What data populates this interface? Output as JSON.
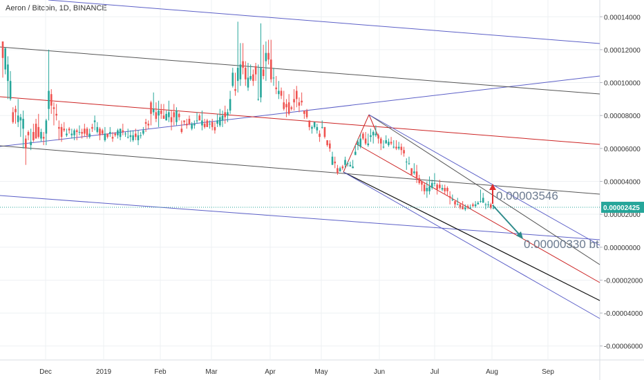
{
  "header": {
    "title": "Aeron / Bitcoin, 1D, BINANCE"
  },
  "colors": {
    "background": "#ffffff",
    "grid": "#eef0f3",
    "axis_text": "#333333",
    "up": "#26a69a",
    "down": "#ef5350",
    "blue_line": "#5b5fc7",
    "gray_line": "#555555",
    "red_line": "#cc2222",
    "black_line": "#111111",
    "price_label_bg": "#26a69a",
    "arrow_teal": "#2e8b8b",
    "arrow_red": "#e03030",
    "annotation_text": "#6b7a8f"
  },
  "chart_data": {
    "type": "candlestick",
    "title": "Aeron / Bitcoin, 1D, BINANCE",
    "y_ticks": [
      "0.00014000",
      "0.00012000",
      "0.00010000",
      "0.00008000",
      "0.00006000",
      "0.00004000",
      "0.00002000",
      "0.00000000",
      "-0.00002000",
      "-0.00004000",
      "-0.00006000"
    ],
    "y_tick_values": [
      0.00014,
      0.00012,
      0.0001,
      8e-05,
      6e-05,
      4e-05,
      2e-05,
      0.0,
      -2e-05,
      -4e-05,
      -6e-05
    ],
    "x_ticks": [
      "Dec",
      "2019",
      "Feb",
      "Mar",
      "Apr",
      "May",
      "Jun",
      "Jul",
      "Aug",
      "Sep"
    ],
    "ylim": [
      -6.85e-05,
      0.0001485
    ],
    "current_price": "0.00002425",
    "annotations": [
      "0.00003546",
      "0.00000330 bt"
    ],
    "candles": [
      [
        0.000125,
        0.000115,
        0.000122,
        0.000103
      ],
      [
        0.000108,
        0.000121,
        0.000113,
        0.000105
      ],
      [
        0.000101,
        0.000111,
        0.000116,
        9e-05
      ],
      [
        9e-05,
        0.000101,
        0.000107,
        8.9e-05
      ],
      [
        8.2e-05,
        7.6e-05,
        8.5e-05,
        7.5e-05
      ],
      [
        8.4e-05,
        8.2e-05,
        8.6e-05,
        7.5e-05
      ],
      [
        7.6e-05,
        8e-05,
        9e-05,
        7.3e-05
      ],
      [
        7.7e-05,
        7.9e-05,
        8.1e-05,
        6.7e-05
      ],
      [
        7.2e-05,
        7.8e-05,
        8.3e-05,
        6e-05
      ],
      [
        6.6e-05,
        6e-05,
        6.8e-05,
        5e-05
      ],
      [
        7e-05,
        6.8e-05,
        7.1e-05,
        6.5e-05
      ],
      [
        6.2e-05,
        6.4e-05,
        7.2e-05,
        5.9e-05
      ],
      [
        7e-05,
        6.5e-05,
        7.5e-05,
        6.4e-05
      ],
      [
        7.5e-05,
        6.6e-05,
        7.8e-05,
        6.6e-05
      ],
      [
        7.3e-05,
        6.7e-05,
        8.1e-05,
        6.6e-05
      ],
      [
        6.6e-05,
        7e-05,
        7.2e-05,
        6.4e-05
      ],
      [
        6.7e-05,
        6.6e-05,
        7e-05,
        6.2e-05
      ],
      [
        6.9e-05,
        7.7e-05,
        7.8e-05,
        6.2e-05
      ],
      [
        8.4e-05,
        9.5e-05,
        0.00012,
        7.7e-05
      ],
      [
        9.3e-05,
        8.6e-05,
        9.6e-05,
        8.1e-05
      ],
      [
        8.5e-05,
        8.4e-05,
        8.8e-05,
        7.4e-05
      ],
      [
        8.1e-05,
        8e-05,
        8.7e-05,
        7.7e-05
      ],
      [
        7.3e-05,
        7.2e-05,
        7.7e-05,
        6.5e-05
      ],
      [
        7.3e-05,
        6.7e-05,
        7.5e-05,
        6.4e-05
      ],
      [
        7.2e-05,
        7.1e-05,
        7.6e-05,
        7e-05
      ],
      [
        6.8e-05,
        6.9e-05,
        7.2e-05,
        6.7e-05
      ],
      [
        7.2e-05,
        7.1e-05,
        7.3e-05,
        6.9e-05
      ],
      [
        6.8e-05,
        6.9e-05,
        7.2e-05,
        6.6e-05
      ],
      [
        6.8e-05,
        7.1e-05,
        7.2e-05,
        6.5e-05
      ],
      [
        7.1e-05,
        7e-05,
        7.2e-05,
        6.5e-05
      ],
      [
        7e-05,
        7e-05,
        7.4e-05,
        6.8e-05
      ],
      [
        7e-05,
        6.9e-05,
        7.2e-05,
        6.6e-05
      ],
      [
        7.2e-05,
        6.9e-05,
        7.5e-05,
        6.7e-05
      ],
      [
        7.2e-05,
        6.8e-05,
        7.3e-05,
        6.6e-05
      ],
      [
        6.7e-05,
        6.9e-05,
        7.2e-05,
        6.6e-05
      ],
      [
        7.3e-05,
        7.2e-05,
        7.5e-05,
        7e-05
      ],
      [
        7.6e-05,
        7.7e-05,
        8e-05,
        7.1e-05
      ],
      [
        7e-05,
        7.3e-05,
        7.6e-05,
        6.9e-05
      ],
      [
        7.2e-05,
        6.8e-05,
        7.3e-05,
        6.5e-05
      ],
      [
        7.1e-05,
        6.9e-05,
        7.2e-05,
        6.8e-05
      ],
      [
        6.5e-05,
        6.9e-05,
        7.3e-05,
        6.4e-05
      ],
      [
        6.9e-05,
        6.7e-05,
        6.9e-05,
        6.6e-05
      ],
      [
        6.9e-05,
        7e-05,
        7.3e-05,
        6.7e-05
      ],
      [
        6.7e-05,
        6.6e-05,
        7e-05,
        6.4e-05
      ],
      [
        6.9e-05,
        6.8e-05,
        7e-05,
        6.7e-05
      ],
      [
        6.8e-05,
        7.1e-05,
        7.2e-05,
        6.6e-05
      ],
      [
        6.7e-05,
        7.2e-05,
        7.2e-05,
        6.5e-05
      ],
      [
        7.1e-05,
        7e-05,
        7.5e-05,
        6.8e-05
      ],
      [
        6.9e-05,
        6.9e-05,
        7e-05,
        6.7e-05
      ],
      [
        6.7e-05,
        6.7e-05,
        7.2e-05,
        6.6e-05
      ],
      [
        6.7e-05,
        6.8e-05,
        7.1e-05,
        6.4e-05
      ],
      [
        6.5e-05,
        6.8e-05,
        7.1e-05,
        6.4e-05
      ],
      [
        6.9e-05,
        6.7e-05,
        7.2e-05,
        6.5e-05
      ],
      [
        6.5e-05,
        6.8e-05,
        7.1e-05,
        6.2e-05
      ],
      [
        6.8e-05,
        6.8e-05,
        7e-05,
        6.6e-05
      ],
      [
        6.9e-05,
        7.1e-05,
        7.3e-05,
        6.8e-05
      ],
      [
        7.6e-05,
        7.5e-05,
        7.8e-05,
        7e-05
      ],
      [
        7.5e-05,
        7.4e-05,
        7.7e-05,
        7.2e-05
      ],
      [
        8.8e-05,
        8.1e-05,
        8.9e-05,
        7.4e-05
      ],
      [
        8.2e-05,
        8.4e-05,
        9.4e-05,
        8e-05
      ],
      [
        8.2e-05,
        7.8e-05,
        8.8e-05,
        7.6e-05
      ],
      [
        8e-05,
        8.3e-05,
        8.9e-05,
        7.3e-05
      ],
      [
        8.3e-05,
        8.1e-05,
        8.7e-05,
        7.8e-05
      ],
      [
        8e-05,
        7.8e-05,
        8.7e-05,
        7.8e-05
      ],
      [
        7.7e-05,
        8.1e-05,
        8.3e-05,
        7.7e-05
      ],
      [
        7.9e-05,
        8.2e-05,
        8.9e-05,
        7.6e-05
      ],
      [
        7.9e-05,
        7.6e-05,
        8.3e-05,
        7.1e-05
      ],
      [
        8.2e-05,
        7.9e-05,
        8.7e-05,
        7.4e-05
      ],
      [
        7.6e-05,
        8.3e-05,
        8.5e-05,
        7.4e-05
      ],
      [
        8.1e-05,
        7.9e-05,
        8.2e-05,
        7.7e-05
      ],
      [
        7.2e-05,
        7e-05,
        7.7e-05,
        6.9e-05
      ],
      [
        7.7e-05,
        7.6e-05,
        7.7e-05,
        7.4e-05
      ],
      [
        7.5e-05,
        7.4e-05,
        7.8e-05,
        7.2e-05
      ],
      [
        7.8e-05,
        7.5e-05,
        8e-05,
        7.4e-05
      ],
      [
        7.2e-05,
        7.5e-05,
        7.6e-05,
        7.1e-05
      ],
      [
        7.4e-05,
        7.5e-05,
        7.7e-05,
        7.2e-05
      ],
      [
        7.7e-05,
        7.7e-05,
        8.2e-05,
        7.5e-05
      ],
      [
        8e-05,
        7.7e-05,
        8.1e-05,
        7.7e-05
      ],
      [
        7.4e-05,
        7.7e-05,
        8.3e-05,
        7.1e-05
      ],
      [
        7.5e-05,
        7.3e-05,
        7.8e-05,
        7.2e-05
      ],
      [
        7.7e-05,
        7.3e-05,
        7.8e-05,
        7.3e-05
      ],
      [
        7.5e-05,
        7.5e-05,
        7.7e-05,
        7.2e-05
      ],
      [
        7.6e-05,
        7.3e-05,
        7.8e-05,
        7.1e-05
      ],
      [
        7.3e-05,
        7.1e-05,
        7.6e-05,
        6.9e-05
      ],
      [
        7.5e-05,
        7.7e-05,
        8.1e-05,
        7.3e-05
      ],
      [
        7.4e-05,
        7.9e-05,
        8.4e-05,
        7.3e-05
      ],
      [
        7.7e-05,
        8e-05,
        8.3e-05,
        7.3e-05
      ],
      [
        8.2e-05,
        7.9e-05,
        8.6e-05,
        7.5e-05
      ],
      [
        8e-05,
        8.2e-05,
        8.4e-05,
        7.6e-05
      ],
      [
        8.3e-05,
        9e-05,
        9.5e-05,
        8.1e-05
      ],
      [
        9.8e-05,
        0.000106,
        0.000109,
        9.7e-05
      ],
      [
        9.6e-05,
        9.5e-05,
        0.000106,
        9.2e-05
      ],
      [
        0.000101,
        0.000109,
        0.000137,
        9.4e-05
      ],
      [
        0.000102,
        0.000111,
        0.000124,
        9.8e-05
      ],
      [
        0.000113,
        0.000109,
        0.000124,
        0.000105
      ],
      [
        0.000109,
        0.000102,
        0.000113,
        9.8e-05
      ],
      [
        9.7e-05,
        0.000103,
        0.000112,
        9.5e-05
      ],
      [
        0.000102,
        0.000104,
        0.000111,
        0.000101
      ],
      [
        0.000105,
        0.000101,
        0.000108,
        9.8e-05
      ],
      [
        0.00011,
        0.000105,
        0.000112,
        0.000101
      ],
      [
        9e-05,
        9e-05,
        0.000111,
        8.9e-05
      ],
      [
        9.1e-05,
        0.000109,
        0.000136,
        8.8e-05
      ],
      [
        0.000108,
        0.000104,
        0.000123,
        0.000102
      ],
      [
        0.000113,
        0.000118,
        0.000125,
        0.000101
      ],
      [
        0.000118,
        0.000114,
        0.000126,
        0.000111
      ],
      [
        0.000114,
        0.000102,
        0.000126,
        0.0001
      ],
      [
        0.000103,
        0.000103,
        0.000109,
        9.8e-05
      ],
      [
        9.7e-05,
        9.6e-05,
        0.000104,
        9.3e-05
      ],
      [
        9.3e-05,
        9.5e-05,
        0.000101,
        9e-05
      ],
      [
        9.5e-05,
        9.2e-05,
        9.7e-05,
        9e-05
      ],
      [
        8.8e-05,
        8.4e-05,
        9.5e-05,
        8.3e-05
      ],
      [
        8.7e-05,
        8.5e-05,
        9e-05,
        7.9e-05
      ],
      [
        8.8e-05,
        8.1e-05,
        9.3e-05,
        8e-05
      ],
      [
        8.5e-05,
        8.4e-05,
        8.6e-05,
        8.3e-05
      ],
      [
        9e-05,
        8.8e-05,
        9.6e-05,
        8.3e-05
      ],
      [
        9.5e-05,
        9e-05,
        9.8e-05,
        8.5e-05
      ],
      [
        8.8e-05,
        8.6e-05,
        9.1e-05,
        8.2e-05
      ],
      [
        8.9e-05,
        8.8e-05,
        9.4e-05,
        8.6e-05
      ],
      [
        8.3e-05,
        8.1e-05,
        8.3e-05,
        7.8e-05
      ],
      [
        8.3e-05,
        7.9e-05,
        8.4e-05,
        7.8e-05
      ],
      [
        7.7e-05,
        7.3e-05,
        7.7e-05,
        7.1e-05
      ],
      [
        7.2e-05,
        7.3e-05,
        7.4e-05,
        6.9e-05
      ],
      [
        7.3e-05,
        7.6e-05,
        7.6e-05,
        7.2e-05
      ],
      [
        7.1e-05,
        7.3e-05,
        7.5e-05,
        6.9e-05
      ],
      [
        6.9e-05,
        6.7e-05,
        7.1e-05,
        6.4e-05
      ],
      [
        7.3e-05,
        7.3e-05,
        7.7e-05,
        7.2e-05
      ],
      [
        7.3e-05,
        6.7e-05,
        7.3e-05,
        6.6e-05
      ],
      [
        6.5e-05,
        6.2e-05,
        6.5e-05,
        6.1e-05
      ],
      [
        6.3e-05,
        6e-05,
        6.5e-05,
        5.8e-05
      ],
      [
        5e-05,
        5.5e-05,
        5.8e-05,
        5e-05
      ],
      [
        5.2e-05,
        5.1e-05,
        5.5e-05,
        4.8e-05
      ],
      [
        4.8e-05,
        4.5e-05,
        5e-05,
        4.4e-05
      ],
      [
        4.6e-05,
        4.8e-05,
        4.9e-05,
        4.6e-05
      ],
      [
        4.9e-05,
        4.8e-05,
        5e-05,
        4.7e-05
      ],
      [
        5e-05,
        5.3e-05,
        5.5e-05,
        4.8e-05
      ],
      [
        5.1e-05,
        5.1e-05,
        5.2e-05,
        4.9e-05
      ],
      [
        4.9e-05,
        5e-05,
        5.2e-05,
        4.9e-05
      ],
      [
        4.8e-05,
        4.9e-05,
        5.3e-05,
        4.8e-05
      ],
      [
        5.6e-05,
        5.8e-05,
        6.2e-05,
        5.6e-05
      ],
      [
        6.2e-05,
        6.4e-05,
        6.6e-05,
        5.9e-05
      ],
      [
        6.1e-05,
        6.6e-05,
        6.9e-05,
        6e-05
      ],
      [
        6.9e-05,
        6.6e-05,
        7e-05,
        6.5e-05
      ],
      [
        6.6e-05,
        6.3e-05,
        7e-05,
        6.2e-05
      ],
      [
        6.2e-05,
        6.3e-05,
        6.9e-05,
        6.1e-05
      ],
      [
        6.7e-05,
        6.8e-05,
        7.2e-05,
        6.4e-05
      ],
      [
        6.8e-05,
        7e-05,
        7.1e-05,
        6.3e-05
      ],
      [
        6.8e-05,
        6.9e-05,
        7.4e-05,
        6.7e-05
      ],
      [
        6.8e-05,
        6.6e-05,
        6.9e-05,
        6.3e-05
      ],
      [
        6.6e-05,
        6.3e-05,
        6.7e-05,
        5.9e-05
      ],
      [
        6.1e-05,
        6.1e-05,
        6.5e-05,
        6e-05
      ],
      [
        6.3e-05,
        6.5e-05,
        6.8e-05,
        6.3e-05
      ],
      [
        6.2e-05,
        6.4e-05,
        6.6e-05,
        6.1e-05
      ],
      [
        6.4e-05,
        6.3e-05,
        6.7e-05,
        6.2e-05
      ],
      [
        6.1e-05,
        6.1e-05,
        6.5e-05,
        6e-05
      ],
      [
        6.1e-05,
        6e-05,
        6.5e-05,
        5.9e-05
      ],
      [
        6e-05,
        6.1e-05,
        6.4e-05,
        5.9e-05
      ],
      [
        6.1e-05,
        5.9e-05,
        6.3e-05,
        5.6e-05
      ],
      [
        5.9e-05,
        5.7e-05,
        6.1e-05,
        5.5e-05
      ],
      [
        5.2e-05,
        5.2e-05,
        5.4e-05,
        4.7e-05
      ],
      [
        5.1e-05,
        5.1e-05,
        5.5e-05,
        5e-05
      ],
      [
        4.8e-05,
        4.4e-05,
        4.8e-05,
        4.4e-05
      ],
      [
        4.5e-05,
        4.6e-05,
        5.1e-05,
        4.4e-05
      ],
      [
        4.6e-05,
        4.2e-05,
        5e-05,
        3.9e-05
      ],
      [
        4.2e-05,
        3.9e-05,
        4.4e-05,
        3.8e-05
      ],
      [
        4e-05,
        3.8e-05,
        4e-05,
        3.4e-05
      ],
      [
        3.8e-05,
        3.4e-05,
        3.9e-05,
        3.2e-05
      ],
      [
        3.4e-05,
        3.6e-05,
        4e-05,
        3e-05
      ],
      [
        3.4e-05,
        3.7e-05,
        4.3e-05,
        3.2e-05
      ],
      [
        3.6e-05,
        3.9e-05,
        4.1e-05,
        3.5e-05
      ],
      [
        3.9e-05,
        3.9e-05,
        4.5e-05,
        3.7e-05
      ],
      [
        3.8e-05,
        3.5e-05,
        3.9e-05,
        3.2e-05
      ],
      [
        3.8e-05,
        3.6e-05,
        4.1e-05,
        3.5e-05
      ],
      [
        3.5e-05,
        3.6e-05,
        3.8e-05,
        3.4e-05
      ],
      [
        3.6e-05,
        3.4e-05,
        3.8e-05,
        3.2e-05
      ],
      [
        3.6e-05,
        3.4e-05,
        3.7e-05,
        3.1e-05
      ],
      [
        3.1e-05,
        3e-05,
        3.4e-05,
        2.6e-05
      ],
      [
        2.9e-05,
        2.9e-05,
        3.2e-05,
        2.8e-05
      ],
      [
        2.8e-05,
        2.6e-05,
        2.8e-05,
        2.4e-05
      ],
      [
        2.6e-05,
        2.6e-05,
        3e-05,
        2.6e-05
      ],
      [
        2.6e-05,
        2.4e-05,
        2.7e-05,
        2.3e-05
      ],
      [
        2.5e-05,
        2.3e-05,
        2.8e-05,
        2.3e-05
      ],
      [
        2.3e-05,
        2.4e-05,
        2.6e-05,
        2.2e-05
      ],
      [
        2.5e-05,
        2.4e-05,
        2.6e-05,
        2.3e-05
      ],
      [
        2.4e-05,
        2.4e-05,
        2.6e-05,
        2.3e-05
      ],
      [
        2.6e-05,
        2.5e-05,
        2.7e-05,
        2.4e-05
      ],
      [
        2.5e-05,
        2.6e-05,
        2.8e-05,
        2.4e-05
      ],
      [
        2.6e-05,
        2.7e-05,
        2.8e-05,
        2.6e-05
      ],
      [
        2.8e-05,
        2.8e-05,
        3.5e-05,
        2.7e-05
      ],
      [
        2.7e-05,
        3e-05,
        3.3e-05,
        2.7e-05
      ],
      [
        2.6e-05,
        2.6e-05,
        2.7e-05,
        2.3e-05
      ],
      [
        2.6e-05,
        2.6e-05,
        2.8e-05,
        2.4e-05
      ],
      [
        2.6e-05,
        2.4e-05,
        2.7e-05,
        2.3e-05
      ],
      [
        2.4e-05,
        2.4e-05,
        2.6e-05,
        2.3e-05
      ]
    ]
  }
}
